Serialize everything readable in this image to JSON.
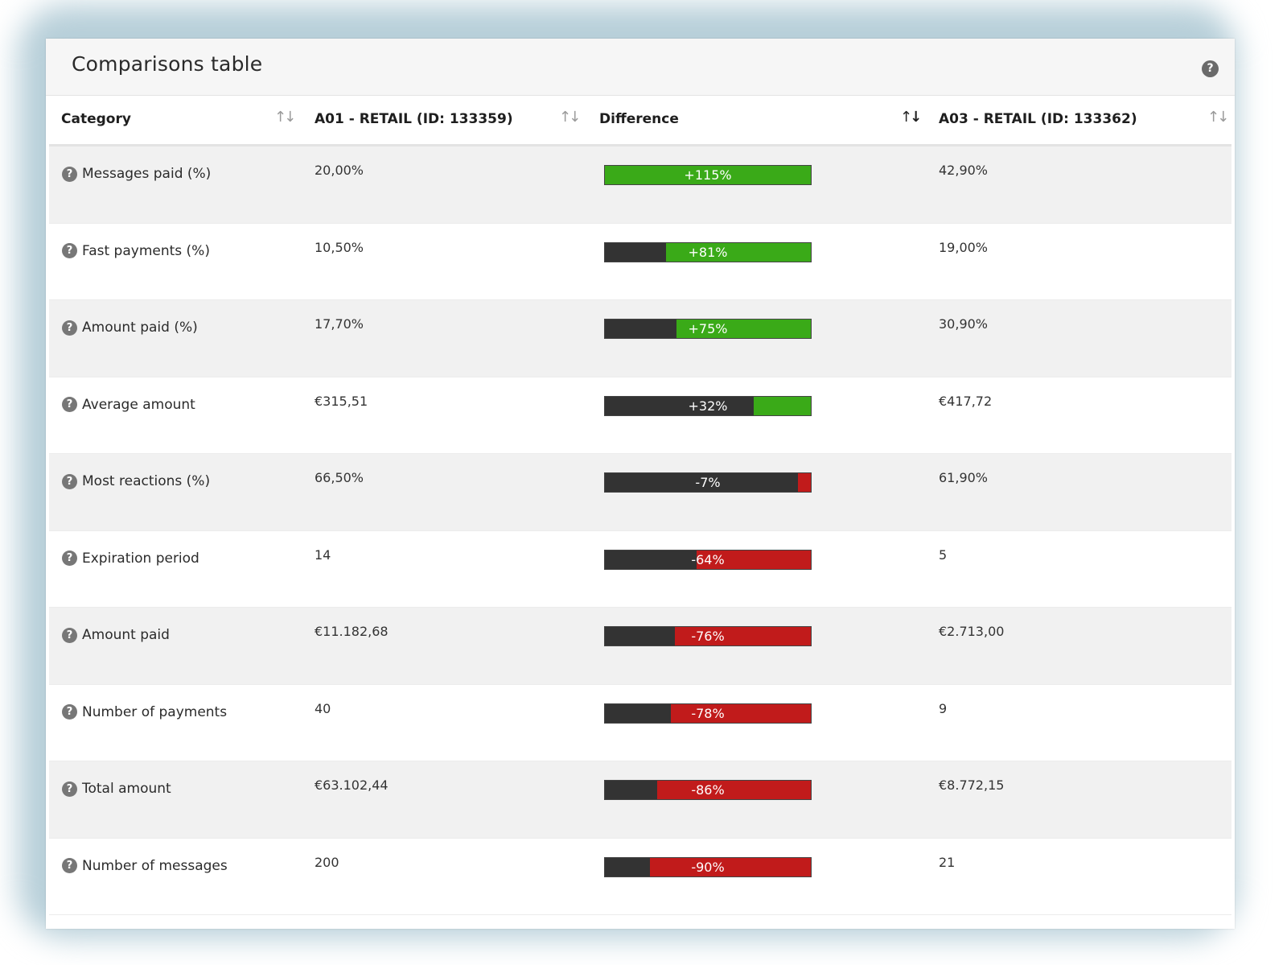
{
  "panel": {
    "title": "Comparisons table",
    "help_icon": "question-circle-icon"
  },
  "columns": [
    {
      "label": "Category",
      "sort_icon": "sort-icon",
      "sort_glyph": "↑↓"
    },
    {
      "label": "A01 - RETAIL (ID: 133359)",
      "sort_icon": "sort-icon",
      "sort_glyph": "↑↓"
    },
    {
      "label": "Difference",
      "sort_icon": "sort-desc-icon",
      "sort_glyph": "↑↓"
    },
    {
      "label": "A03 - RETAIL (ID: 133362)",
      "sort_icon": "sort-icon",
      "sort_glyph": "↑↓"
    }
  ],
  "colors": {
    "positive": "#3aaa18",
    "negative": "#c11b1b",
    "neutral": "#333333"
  },
  "rows": [
    {
      "category": "Messages paid (%)",
      "a01": "20,00%",
      "difference": "+115%",
      "diff_value": 115,
      "a03": "42,90%"
    },
    {
      "category": "Fast payments (%)",
      "a01": "10,50%",
      "difference": "+81%",
      "diff_value": 81,
      "a03": "19,00%"
    },
    {
      "category": "Amount paid (%)",
      "a01": "17,70%",
      "difference": "+75%",
      "diff_value": 75,
      "a03": "30,90%"
    },
    {
      "category": "Average amount",
      "a01": "€315,51",
      "difference": "+32%",
      "diff_value": 32,
      "a03": "€417,72"
    },
    {
      "category": "Most reactions (%)",
      "a01": "66,50%",
      "difference": "-7%",
      "diff_value": -7,
      "a03": "61,90%"
    },
    {
      "category": "Expiration period",
      "a01": "14",
      "difference": "-64%",
      "diff_value": -64,
      "a03": "5"
    },
    {
      "category": "Amount paid",
      "a01": "€11.182,68",
      "difference": "-76%",
      "diff_value": -76,
      "a03": "€2.713,00"
    },
    {
      "category": "Number of payments",
      "a01": "40",
      "difference": "-78%",
      "diff_value": -78,
      "a03": "9"
    },
    {
      "category": "Total amount",
      "a01": "€63.102,44",
      "difference": "-86%",
      "diff_value": -86,
      "a03": "€8.772,15"
    },
    {
      "category": "Number of messages",
      "a01": "200",
      "difference": "-90%",
      "diff_value": -90,
      "a03": "21"
    }
  ]
}
